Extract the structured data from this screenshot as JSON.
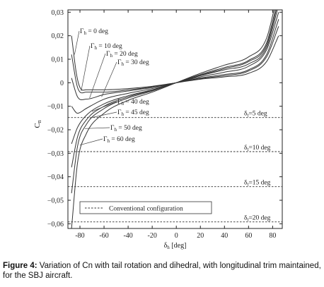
{
  "caption": {
    "label": "Figure 4:",
    "text": "Variation of Cn with tail rotation and dihedral, with longitudinal trim maintained, for the SBJ aircraft."
  },
  "chart_data": {
    "type": "line",
    "xlabel": "δh [deg]",
    "ylabel": "Cn",
    "xlim": [
      -90,
      88
    ],
    "ylim": [
      -0.062,
      0.031
    ],
    "xticks": [
      -80,
      -60,
      -40,
      -20,
      0,
      20,
      40,
      60,
      80
    ],
    "xtick_labels": [
      "-80",
      "-60",
      "-40",
      "-20",
      "0",
      "20",
      "40",
      "60",
      "80"
    ],
    "yticks": [
      0.03,
      0.02,
      0.01,
      0,
      -0.01,
      -0.02,
      -0.03,
      -0.04,
      -0.05,
      -0.06
    ],
    "ytick_labels": [
      "0,03",
      "0,02",
      "0,01",
      "0",
      "−0,01",
      "−0,02",
      "−0,03",
      "−0,04",
      "−0,05",
      "−0,06"
    ],
    "grid": false,
    "curve_color": "#333333",
    "series": [
      {
        "name": "Γh = 0 deg",
        "x": [
          -87,
          -83,
          -80,
          -75,
          -60,
          -40,
          -20,
          0,
          20,
          40,
          60,
          75,
          85
        ],
        "y": [
          0.02,
          0.004,
          -0.002,
          -0.003,
          -0.003,
          -0.0025,
          -0.0015,
          0,
          0.0015,
          0.0025,
          0.004,
          0.009,
          0.02
        ]
      },
      {
        "name": "Γh = 10 deg",
        "x": [
          -87,
          -82,
          -75,
          -60,
          -40,
          -20,
          0,
          20,
          40,
          60,
          75,
          85
        ],
        "y": [
          0.012,
          -0.002,
          -0.004,
          -0.004,
          -0.003,
          -0.0018,
          0,
          0.0018,
          0.003,
          0.005,
          0.011,
          0.024
        ]
      },
      {
        "name": "Γh = 20 deg",
        "x": [
          -87,
          -82,
          -75,
          -60,
          -40,
          -20,
          0,
          20,
          40,
          60,
          75,
          85
        ],
        "y": [
          0.002,
          -0.006,
          -0.007,
          -0.005,
          -0.0035,
          -0.002,
          0,
          0.002,
          0.0035,
          0.0055,
          0.012,
          0.027
        ]
      },
      {
        "name": "Γh = 30 deg",
        "x": [
          -87,
          -82,
          -75,
          -60,
          -40,
          -20,
          0,
          20,
          40,
          60,
          75,
          85
        ],
        "y": [
          -0.01,
          -0.013,
          -0.011,
          -0.007,
          -0.0045,
          -0.0025,
          0,
          0.0025,
          0.0045,
          0.007,
          0.014,
          0.03
        ]
      },
      {
        "name": "Γh = 40 deg",
        "x": [
          -87,
          -82,
          -75,
          -60,
          -40,
          -20,
          0,
          20,
          40,
          60,
          75,
          85
        ],
        "y": [
          -0.026,
          -0.019,
          -0.014,
          -0.009,
          -0.0055,
          -0.003,
          0,
          0.003,
          0.0055,
          0.008,
          0.015,
          0.033
        ]
      },
      {
        "name": "Γh = 45 deg",
        "x": [
          -87,
          -82,
          -75,
          -60,
          -40,
          -20,
          0,
          20,
          40,
          60,
          75,
          85
        ],
        "y": [
          -0.036,
          -0.023,
          -0.016,
          -0.01,
          -0.006,
          -0.0032,
          0,
          0.0032,
          0.006,
          0.009,
          0.016,
          0.035
        ]
      },
      {
        "name": "Γh = 50 deg",
        "x": [
          -87,
          -82,
          -75,
          -60,
          -40,
          -20,
          0,
          20,
          40,
          60,
          75,
          85
        ],
        "y": [
          -0.047,
          -0.027,
          -0.018,
          -0.011,
          -0.0065,
          -0.0035,
          0,
          0.0035,
          0.0065,
          0.0095,
          0.017,
          0.037
        ]
      },
      {
        "name": "Γh = 60 deg",
        "x": [
          -87,
          -82,
          -75,
          -60,
          -40,
          -20,
          0,
          20,
          40,
          60,
          75,
          85
        ],
        "y": [
          -0.062,
          -0.034,
          -0.022,
          -0.013,
          -0.0075,
          -0.004,
          0,
          0.004,
          0.0075,
          0.011,
          0.019,
          0.04
        ]
      }
    ],
    "reference_lines": [
      {
        "label": "δt=5 deg",
        "y": -0.0148
      },
      {
        "label": "δt=10 deg",
        "y": -0.0293
      },
      {
        "label": "δt=15 deg",
        "y": -0.0442
      },
      {
        "label": "δt=20 deg",
        "y": -0.0592
      }
    ],
    "legend": {
      "entries": [
        "Conventional configuration"
      ],
      "placement": "bottom-center"
    }
  }
}
